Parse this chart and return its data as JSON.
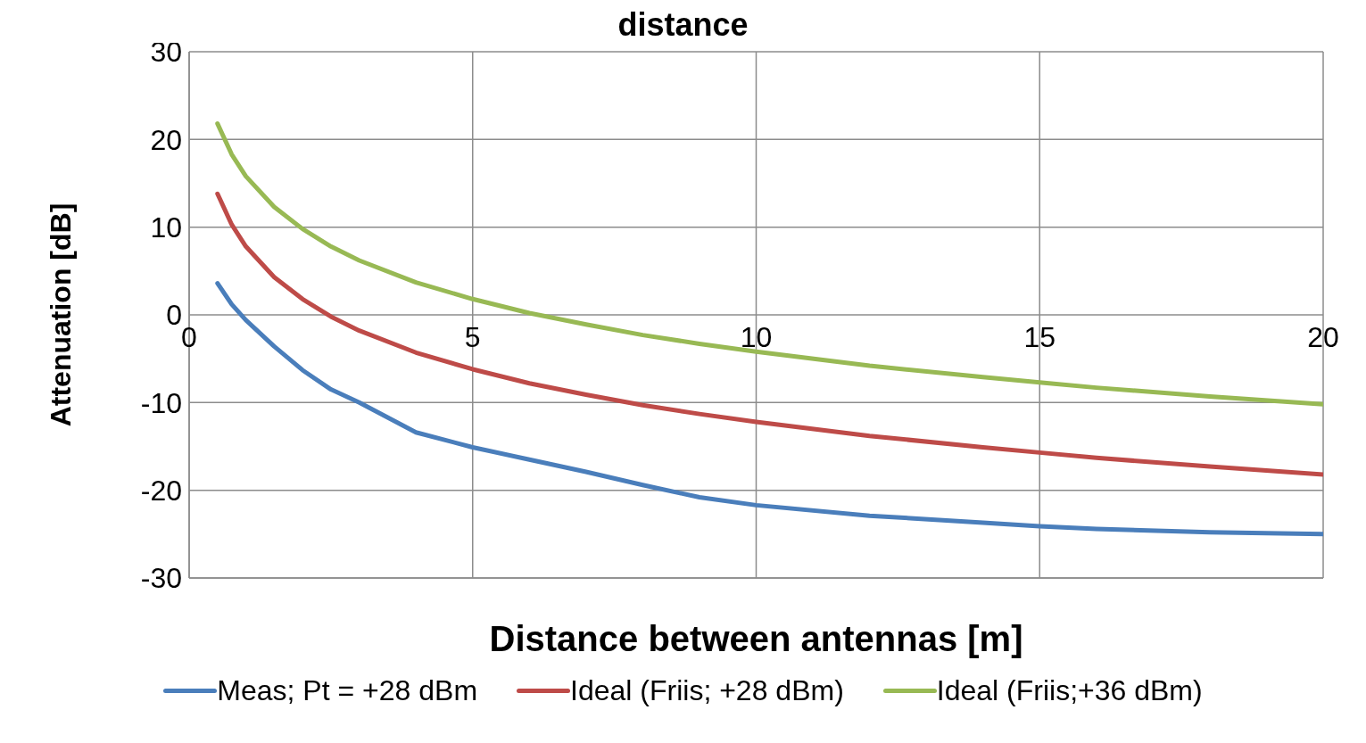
{
  "chart_data": {
    "type": "line",
    "title": "distance",
    "xlabel": "Distance between antennas [m]",
    "ylabel": "Attenuation [dB]",
    "x": [
      0.5,
      0.75,
      1,
      1.5,
      2,
      2.5,
      3,
      4,
      5,
      6,
      7,
      8,
      9,
      10,
      12,
      14,
      15,
      16,
      18,
      20
    ],
    "series": [
      {
        "name": "Meas; Pt = +28 dBm",
        "color": "#4a7ebb",
        "values": [
          3.6,
          1.2,
          -0.6,
          -3.6,
          -6.3,
          -8.5,
          -10.0,
          -13.4,
          -15.1,
          -16.5,
          -17.9,
          -19.4,
          -20.8,
          -21.7,
          -22.9,
          -23.7,
          -24.1,
          -24.4,
          -24.8,
          -25.0
        ]
      },
      {
        "name": "Ideal (Friis; +28 dBm)",
        "color": "#be4b48",
        "values": [
          13.8,
          10.3,
          7.8,
          4.3,
          1.8,
          -0.2,
          -1.8,
          -4.3,
          -6.2,
          -7.8,
          -9.1,
          -10.3,
          -11.3,
          -12.2,
          -13.8,
          -15.1,
          -15.7,
          -16.3,
          -17.3,
          -18.2
        ]
      },
      {
        "name": "Ideal (Friis;+36 dBm)",
        "color": "#98b954",
        "values": [
          21.8,
          18.3,
          15.8,
          12.3,
          9.8,
          7.8,
          6.2,
          3.7,
          1.8,
          0.2,
          -1.1,
          -2.3,
          -3.3,
          -4.2,
          -5.8,
          -7.1,
          -7.7,
          -8.3,
          -9.3,
          -10.2
        ]
      }
    ],
    "xlim": [
      0,
      20
    ],
    "xticks": [
      0,
      5,
      10,
      15,
      20
    ],
    "ylim": [
      -30,
      30
    ],
    "yticks": [
      -30,
      -20,
      -10,
      0,
      10,
      20,
      30
    ],
    "grid": true,
    "legend": "bottom",
    "marker": "none",
    "line_style": "solid"
  }
}
